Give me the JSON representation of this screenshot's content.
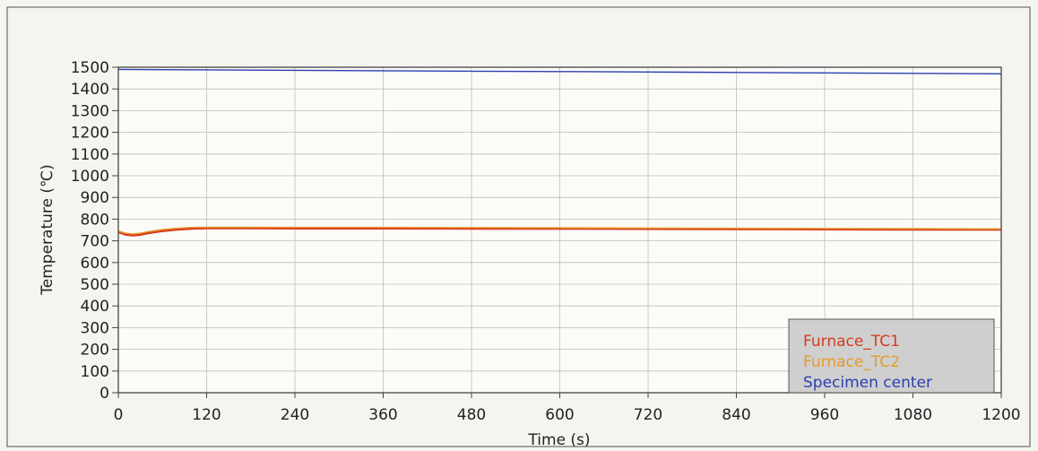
{
  "chart_data": {
    "type": "line",
    "xlabel": "Time (s)",
    "ylabel": "Temperature (℃)",
    "xlim": [
      0,
      1200
    ],
    "ylim": [
      0,
      1500
    ],
    "x_ticks": [
      0,
      120,
      240,
      360,
      480,
      600,
      720,
      840,
      960,
      1080,
      1200
    ],
    "y_ticks": [
      0,
      100,
      200,
      300,
      400,
      500,
      600,
      700,
      800,
      900,
      1000,
      1100,
      1200,
      1300,
      1400,
      1500
    ],
    "grid": true,
    "legend_position": "bottom-right",
    "series": [
      {
        "name": "Furnace_TC1",
        "color": "#d83a1f",
        "x": [
          0,
          10,
          20,
          30,
          40,
          60,
          80,
          100,
          120,
          180,
          240,
          360,
          480,
          600,
          720,
          840,
          960,
          1080,
          1200
        ],
        "y": [
          740,
          728,
          725,
          728,
          735,
          745,
          752,
          756,
          758,
          758,
          757,
          757,
          756,
          756,
          755,
          754,
          753,
          752,
          752
        ]
      },
      {
        "name": "Furnace_TC2",
        "color": "#e69a2a",
        "x": [
          0,
          10,
          20,
          30,
          40,
          60,
          80,
          100,
          120,
          180,
          240,
          360,
          480,
          600,
          720,
          840,
          960,
          1080,
          1200
        ],
        "y": [
          745,
          735,
          732,
          735,
          742,
          752,
          758,
          762,
          763,
          763,
          762,
          762,
          761,
          760,
          759,
          758,
          757,
          756,
          755
        ]
      },
      {
        "name": "Specimen center",
        "color": "#2a3fb0",
        "x": [
          0,
          120,
          240,
          360,
          480,
          600,
          720,
          840,
          960,
          1080,
          1200
        ],
        "y": [
          1490,
          1488,
          1486,
          1484,
          1482,
          1480,
          1478,
          1476,
          1474,
          1472,
          1470
        ]
      }
    ]
  }
}
